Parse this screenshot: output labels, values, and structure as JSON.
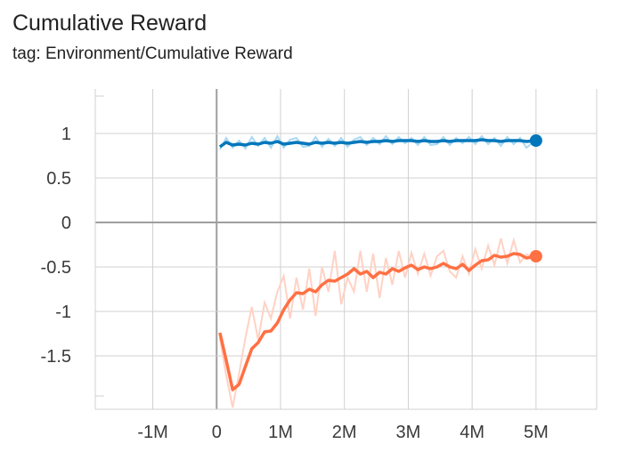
{
  "header": {
    "title": "Cumulative Reward",
    "subtitle": "tag: Environment/Cumulative Reward"
  },
  "chart_data": {
    "type": "line",
    "title": "Cumulative Reward",
    "subtitle": "tag: Environment/Cumulative Reward",
    "xlabel": "",
    "ylabel": "",
    "xlim": [
      -1900000,
      5950000
    ],
    "ylim": [
      -2.1,
      1.5
    ],
    "x_ticks": [
      {
        "value": -1000000,
        "label": "-1M"
      },
      {
        "value": 0,
        "label": "0"
      },
      {
        "value": 1000000,
        "label": "1M"
      },
      {
        "value": 2000000,
        "label": "2M"
      },
      {
        "value": 3000000,
        "label": "3M"
      },
      {
        "value": 4000000,
        "label": "4M"
      },
      {
        "value": 5000000,
        "label": "5M"
      }
    ],
    "y_ticks": [
      {
        "value": 1,
        "label": "1"
      },
      {
        "value": 0.5,
        "label": "0.5"
      },
      {
        "value": 0,
        "label": "0"
      },
      {
        "value": -0.5,
        "label": "-0.5"
      },
      {
        "value": -1,
        "label": "-1"
      },
      {
        "value": -1.5,
        "label": "-1.5"
      }
    ],
    "grid": true,
    "legend": "none",
    "series": [
      {
        "color": "#0077bb",
        "raw_color": "#a9d8f2",
        "x": [
          50000,
          150000,
          250000,
          350000,
          450000,
          550000,
          650000,
          750000,
          850000,
          950000,
          1050000,
          1150000,
          1250000,
          1350000,
          1450000,
          1550000,
          1650000,
          1750000,
          1850000,
          1950000,
          2050000,
          2150000,
          2250000,
          2350000,
          2450000,
          2550000,
          2650000,
          2750000,
          2850000,
          2950000,
          3050000,
          3150000,
          3250000,
          3350000,
          3450000,
          3550000,
          3650000,
          3750000,
          3850000,
          3950000,
          4050000,
          4150000,
          4250000,
          4350000,
          4450000,
          4550000,
          4650000,
          4750000,
          4850000,
          5000000
        ],
        "y": [
          0.85,
          0.9,
          0.87,
          0.88,
          0.87,
          0.89,
          0.88,
          0.9,
          0.89,
          0.91,
          0.88,
          0.89,
          0.9,
          0.89,
          0.88,
          0.9,
          0.89,
          0.9,
          0.89,
          0.9,
          0.89,
          0.9,
          0.91,
          0.9,
          0.91,
          0.91,
          0.92,
          0.91,
          0.92,
          0.92,
          0.92,
          0.91,
          0.92,
          0.91,
          0.91,
          0.92,
          0.91,
          0.92,
          0.92,
          0.92,
          0.92,
          0.93,
          0.92,
          0.92,
          0.91,
          0.92,
          0.92,
          0.92,
          0.91,
          0.92
        ],
        "raw_y": [
          0.82,
          0.95,
          0.84,
          0.92,
          0.83,
          0.96,
          0.86,
          0.95,
          0.84,
          0.97,
          0.84,
          0.93,
          0.95,
          0.85,
          0.86,
          0.96,
          0.85,
          0.94,
          0.86,
          0.95,
          0.85,
          0.93,
          0.96,
          0.87,
          0.95,
          0.88,
          0.97,
          0.88,
          0.96,
          0.89,
          0.95,
          0.87,
          0.96,
          0.87,
          0.88,
          0.96,
          0.87,
          0.95,
          0.89,
          0.96,
          0.88,
          0.97,
          0.88,
          0.95,
          0.86,
          0.96,
          0.88,
          0.95,
          0.84,
          0.93
        ]
      },
      {
        "color": "#ff7043",
        "raw_color": "#ffd2c4",
        "x": [
          50000,
          150000,
          250000,
          350000,
          450000,
          550000,
          650000,
          750000,
          850000,
          950000,
          1050000,
          1150000,
          1250000,
          1350000,
          1450000,
          1550000,
          1650000,
          1750000,
          1850000,
          1950000,
          2050000,
          2150000,
          2250000,
          2350000,
          2450000,
          2550000,
          2650000,
          2750000,
          2850000,
          2950000,
          3050000,
          3150000,
          3250000,
          3350000,
          3450000,
          3550000,
          3650000,
          3750000,
          3850000,
          3950000,
          4050000,
          4150000,
          4250000,
          4350000,
          4450000,
          4550000,
          4650000,
          4750000,
          4850000,
          5000000
        ],
        "y": [
          -1.24,
          -1.55,
          -1.88,
          -1.82,
          -1.62,
          -1.42,
          -1.35,
          -1.23,
          -1.22,
          -1.13,
          -0.98,
          -0.87,
          -0.79,
          -0.8,
          -0.75,
          -0.78,
          -0.7,
          -0.65,
          -0.66,
          -0.62,
          -0.58,
          -0.52,
          -0.58,
          -0.55,
          -0.62,
          -0.56,
          -0.58,
          -0.52,
          -0.55,
          -0.51,
          -0.48,
          -0.53,
          -0.5,
          -0.52,
          -0.5,
          -0.46,
          -0.5,
          -0.52,
          -0.47,
          -0.54,
          -0.48,
          -0.43,
          -0.42,
          -0.37,
          -0.39,
          -0.38,
          -0.35,
          -0.36,
          -0.4,
          -0.38
        ],
        "raw_y": [
          -1.3,
          -1.72,
          -2.08,
          -1.7,
          -1.3,
          -0.95,
          -1.32,
          -0.9,
          -1.08,
          -0.78,
          -0.6,
          -1.08,
          -0.62,
          -0.98,
          -0.52,
          -1.05,
          -0.5,
          -0.78,
          -0.32,
          -0.92,
          -0.62,
          -0.78,
          -0.32,
          -0.78,
          -0.35,
          -0.85,
          -0.4,
          -0.7,
          -0.32,
          -0.62,
          -0.34,
          -0.58,
          -0.35,
          -0.6,
          -0.38,
          -0.32,
          -0.55,
          -0.62,
          -0.38,
          -0.58,
          -0.3,
          -0.52,
          -0.26,
          -0.48,
          -0.18,
          -0.46,
          -0.2,
          -0.45,
          -0.36,
          -0.4
        ]
      }
    ]
  }
}
